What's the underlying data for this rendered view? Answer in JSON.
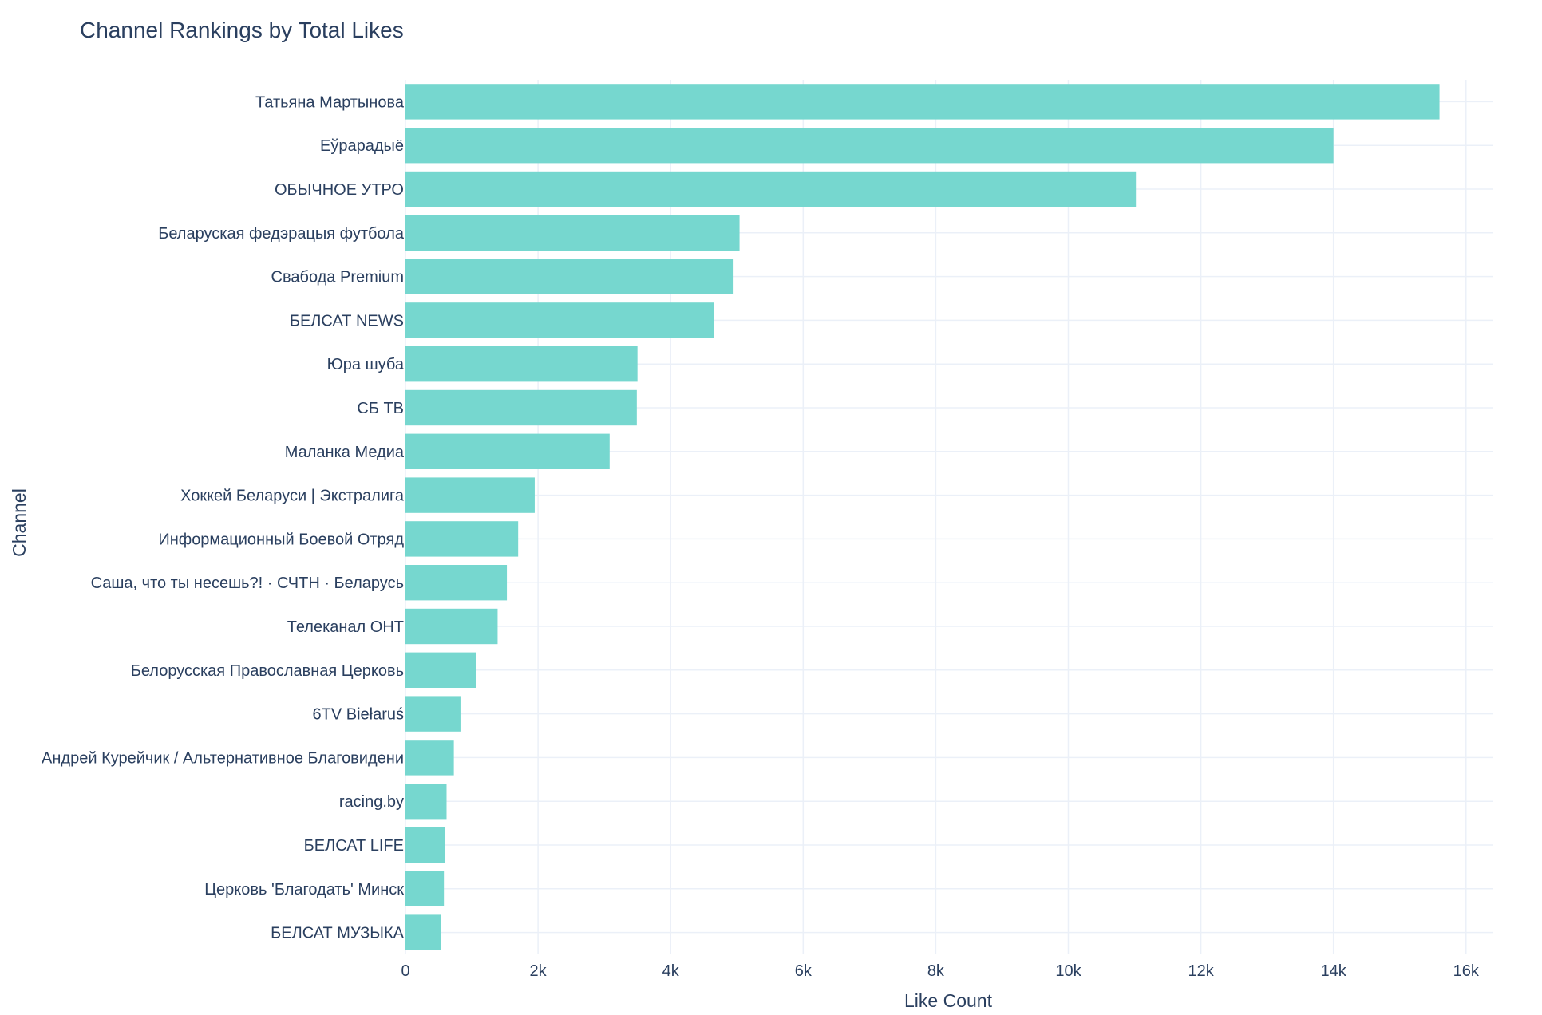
{
  "chart_data": {
    "type": "bar",
    "orientation": "horizontal",
    "title": "Channel Rankings by Total Likes",
    "xlabel": "Like Count",
    "ylabel": "Channel",
    "xlim": [
      0,
      16400
    ],
    "x_ticks": [
      0,
      2000,
      4000,
      6000,
      8000,
      10000,
      12000,
      14000,
      16000
    ],
    "x_tick_labels": [
      "0",
      "2k",
      "4k",
      "6k",
      "8k",
      "10k",
      "12k",
      "14k",
      "16k"
    ],
    "grid": true,
    "bar_color": "#76d7cf",
    "categories": [
      "Татьяна Мартынова",
      "Еўрарадыё",
      "ОБЫЧНОЕ УТРО",
      "Беларуская федэрацыя футбола",
      "Свабода Premium",
      "БЕЛСАТ NEWS",
      "Юра шуба",
      "СБ ТВ",
      "Маланка Медиа",
      "Хоккей Беларуси | Экстралига",
      "Информационный Боевой Отряд",
      "Саша, что ты несешь?! · СЧТН · Беларусь",
      "Телеканал ОНТ",
      "Белорусская Православная Церковь",
      "6TV Biełaruś",
      "Андрей Курейчик / Альтернативное Благовидени",
      "racing.by",
      "БЕЛСАТ LIFE",
      "Церковь 'Благодать' Минск",
      "БЕЛСАТ МУЗЫКА"
    ],
    "values": [
      15600,
      14000,
      11020,
      5040,
      4950,
      4650,
      3500,
      3490,
      3080,
      1950,
      1700,
      1530,
      1390,
      1070,
      830,
      730,
      620,
      600,
      580,
      530
    ]
  }
}
